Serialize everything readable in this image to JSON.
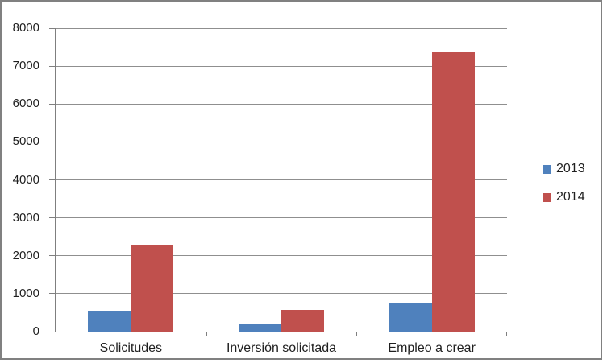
{
  "chart_data": {
    "type": "bar",
    "title": "",
    "categories": [
      "Solicitudes",
      "Inversión solicitada",
      "Empleo a crear"
    ],
    "series": [
      {
        "name": "2013",
        "color": "#4F81BD",
        "values": [
          530,
          200,
          760
        ]
      },
      {
        "name": "2014",
        "color": "#C0504D",
        "values": [
          2300,
          580,
          7370
        ]
      }
    ],
    "ylim": [
      0,
      8000
    ],
    "ytick_interval": 1000,
    "ytick_labels": [
      "0",
      "1000",
      "2000",
      "3000",
      "4000",
      "5000",
      "6000",
      "7000",
      "8000"
    ],
    "grid": true,
    "legend_position": "right",
    "legend_entries": [
      "2013",
      "2014"
    ]
  },
  "colors": {
    "series_2013": "#4F81BD",
    "series_2014": "#C0504D",
    "gridline": "#8F8F8F",
    "axis": "#7F7F7F",
    "frame_border": "#808080",
    "background": "#FFFFFF",
    "text": "#1F1F1F"
  }
}
